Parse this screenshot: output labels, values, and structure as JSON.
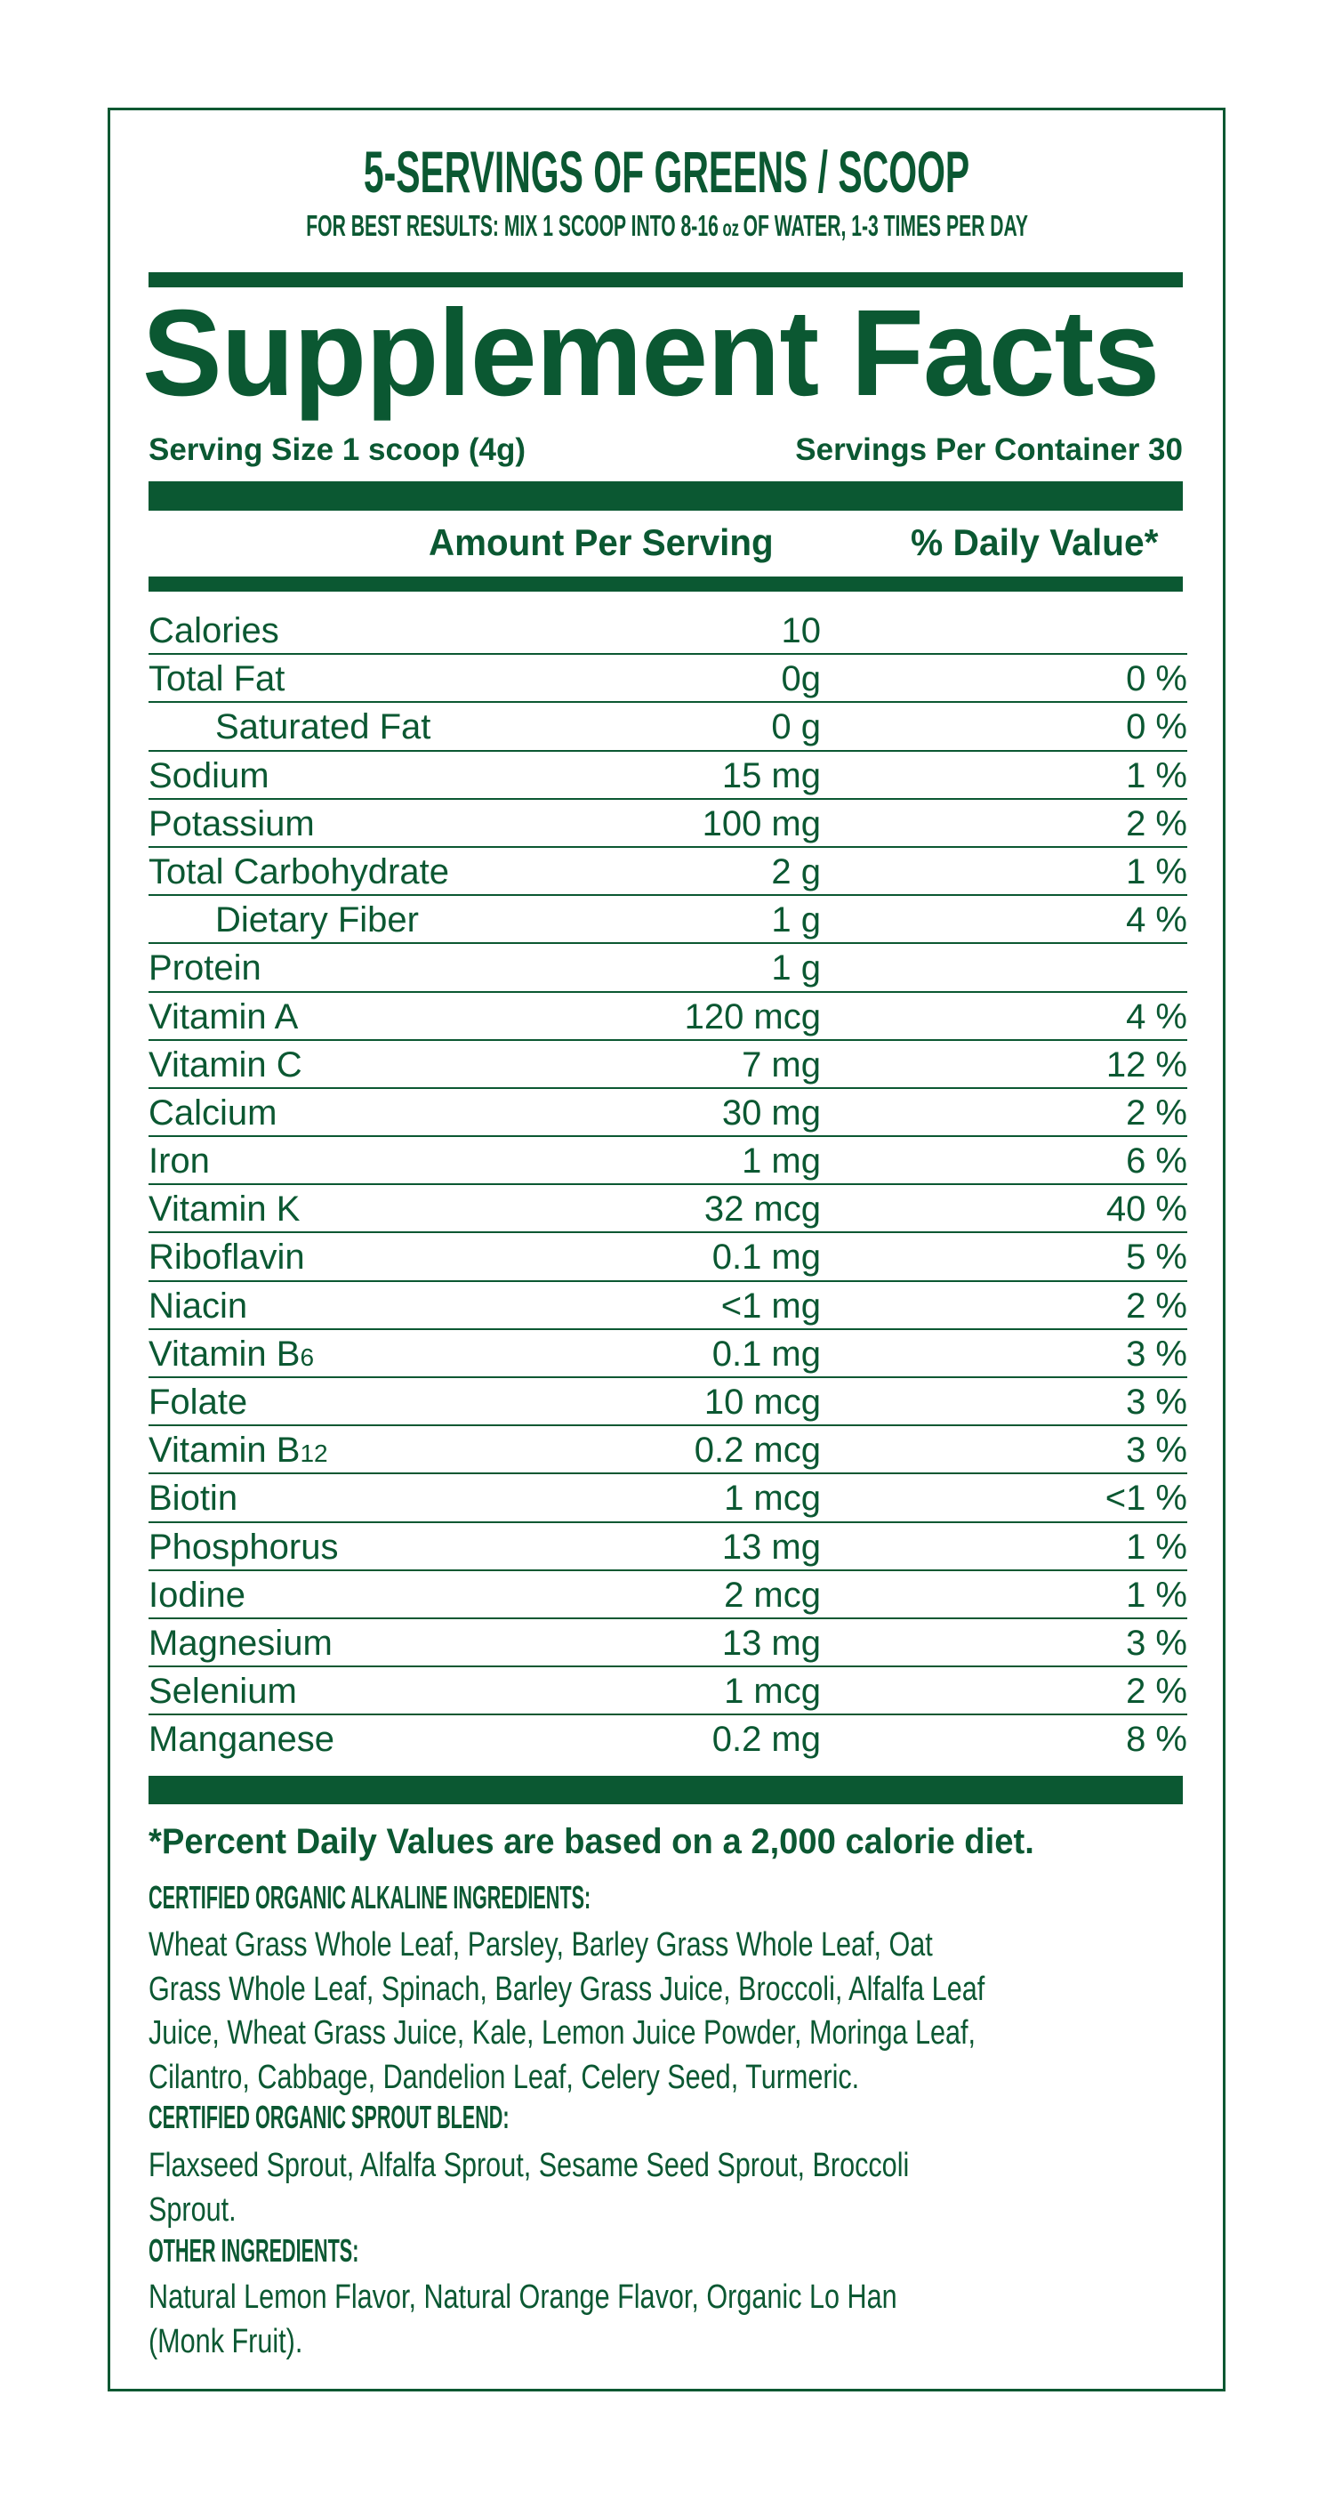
{
  "header": {
    "title": "5-SERVINGS OF GREENS / SCOOP",
    "subtitle_pre": "FOR BEST RESULTS: MIX 1 SCOOP INTO 8-16",
    "subtitle_unit": "oz",
    "subtitle_post": "OF WATER, 1-3 TIMES PER DAY"
  },
  "facts": {
    "title": "Supplement Facts",
    "serving_size": "Serving Size 1 scoop (4g)",
    "servings_per_container": "Servings Per Container 30",
    "col_amount": "Amount Per Serving",
    "col_dv": "% Daily Value*",
    "rows": [
      {
        "name": "Calories",
        "amount": "10",
        "dv": ""
      },
      {
        "name": "Total Fat",
        "amount": "0g",
        "dv": "0 %"
      },
      {
        "name": "Saturated Fat",
        "amount": "0 g",
        "dv": "0 %",
        "indent": true
      },
      {
        "name": "Sodium",
        "amount": "15 mg",
        "dv": "1 %"
      },
      {
        "name": "Potassium",
        "amount": "100 mg",
        "dv": "2 %"
      },
      {
        "name": "Total Carbohydrate",
        "amount": "2 g",
        "dv": "1 %"
      },
      {
        "name": "Dietary Fiber",
        "amount": "1 g",
        "dv": "4 %",
        "indent": true
      },
      {
        "name": "Protein",
        "amount": "1 g",
        "dv": ""
      },
      {
        "name": "Vitamin A",
        "amount": "120 mcg",
        "dv": "4 %"
      },
      {
        "name": "Vitamin C",
        "amount": "7 mg",
        "dv": "12 %"
      },
      {
        "name": "Calcium",
        "amount": "30 mg",
        "dv": "2 %"
      },
      {
        "name": "Iron",
        "amount": "1 mg",
        "dv": "6 %"
      },
      {
        "name": "Vitamin K",
        "amount": "32 mcg",
        "dv": "40 %"
      },
      {
        "name": "Riboflavin",
        "amount": "0.1 mg",
        "dv": "5 %"
      },
      {
        "name": "Niacin",
        "amount": "<1 mg",
        "dv": "2 %"
      },
      {
        "name": "Vitamin B",
        "name_sub": "6",
        "amount": "0.1 mg",
        "dv": "3 %"
      },
      {
        "name": "Folate",
        "amount": "10 mcg",
        "dv": "3 %"
      },
      {
        "name": "Vitamin B",
        "name_sub": "12",
        "amount": "0.2 mcg",
        "dv": "3 %"
      },
      {
        "name": "Biotin",
        "amount": "1 mcg",
        "dv": "<1 %"
      },
      {
        "name": "Phosphorus",
        "amount": "13 mg",
        "dv": "1 %"
      },
      {
        "name": "Iodine",
        "amount": "2 mcg",
        "dv": "1 %"
      },
      {
        "name": "Magnesium",
        "amount": "13 mg",
        "dv": "3 %"
      },
      {
        "name": "Selenium",
        "amount": "1 mcg",
        "dv": "2 %"
      },
      {
        "name": "Manganese",
        "amount": "0.2 mg",
        "dv": "8 %"
      }
    ],
    "footnote": "*Percent Daily Values are based on a 2,000 calorie diet."
  },
  "ingredients": {
    "alkaline": {
      "heading": "CERTIFIED ORGANIC ALKALINE INGREDIENTS:",
      "lines": [
        "Wheat Grass Whole Leaf, Parsley, Barley Grass Whole Leaf, Oat",
        "Grass Whole Leaf, Spinach, Barley Grass Juice, Broccoli, Alfalfa Leaf",
        "Juice, Wheat Grass Juice, Kale, Lemon Juice Powder, Moringa Leaf,",
        "Cilantro, Cabbage, Dandelion Leaf, Celery Seed, Turmeric."
      ]
    },
    "sprout": {
      "heading": "CERTIFIED ORGANIC SPROUT BLEND:",
      "lines": [
        "Flaxseed Sprout, Alfalfa Sprout, Sesame Seed Sprout, Broccoli",
        "Sprout."
      ]
    },
    "other": {
      "heading": "OTHER INGREDIENTS:",
      "lines": [
        "Natural Lemon Flavor, Natural Orange Flavor, Organic Lo Han",
        "(Monk Fruit)."
      ]
    }
  },
  "colors": {
    "brand_green": "#0b5832",
    "background": "#ffffff"
  }
}
